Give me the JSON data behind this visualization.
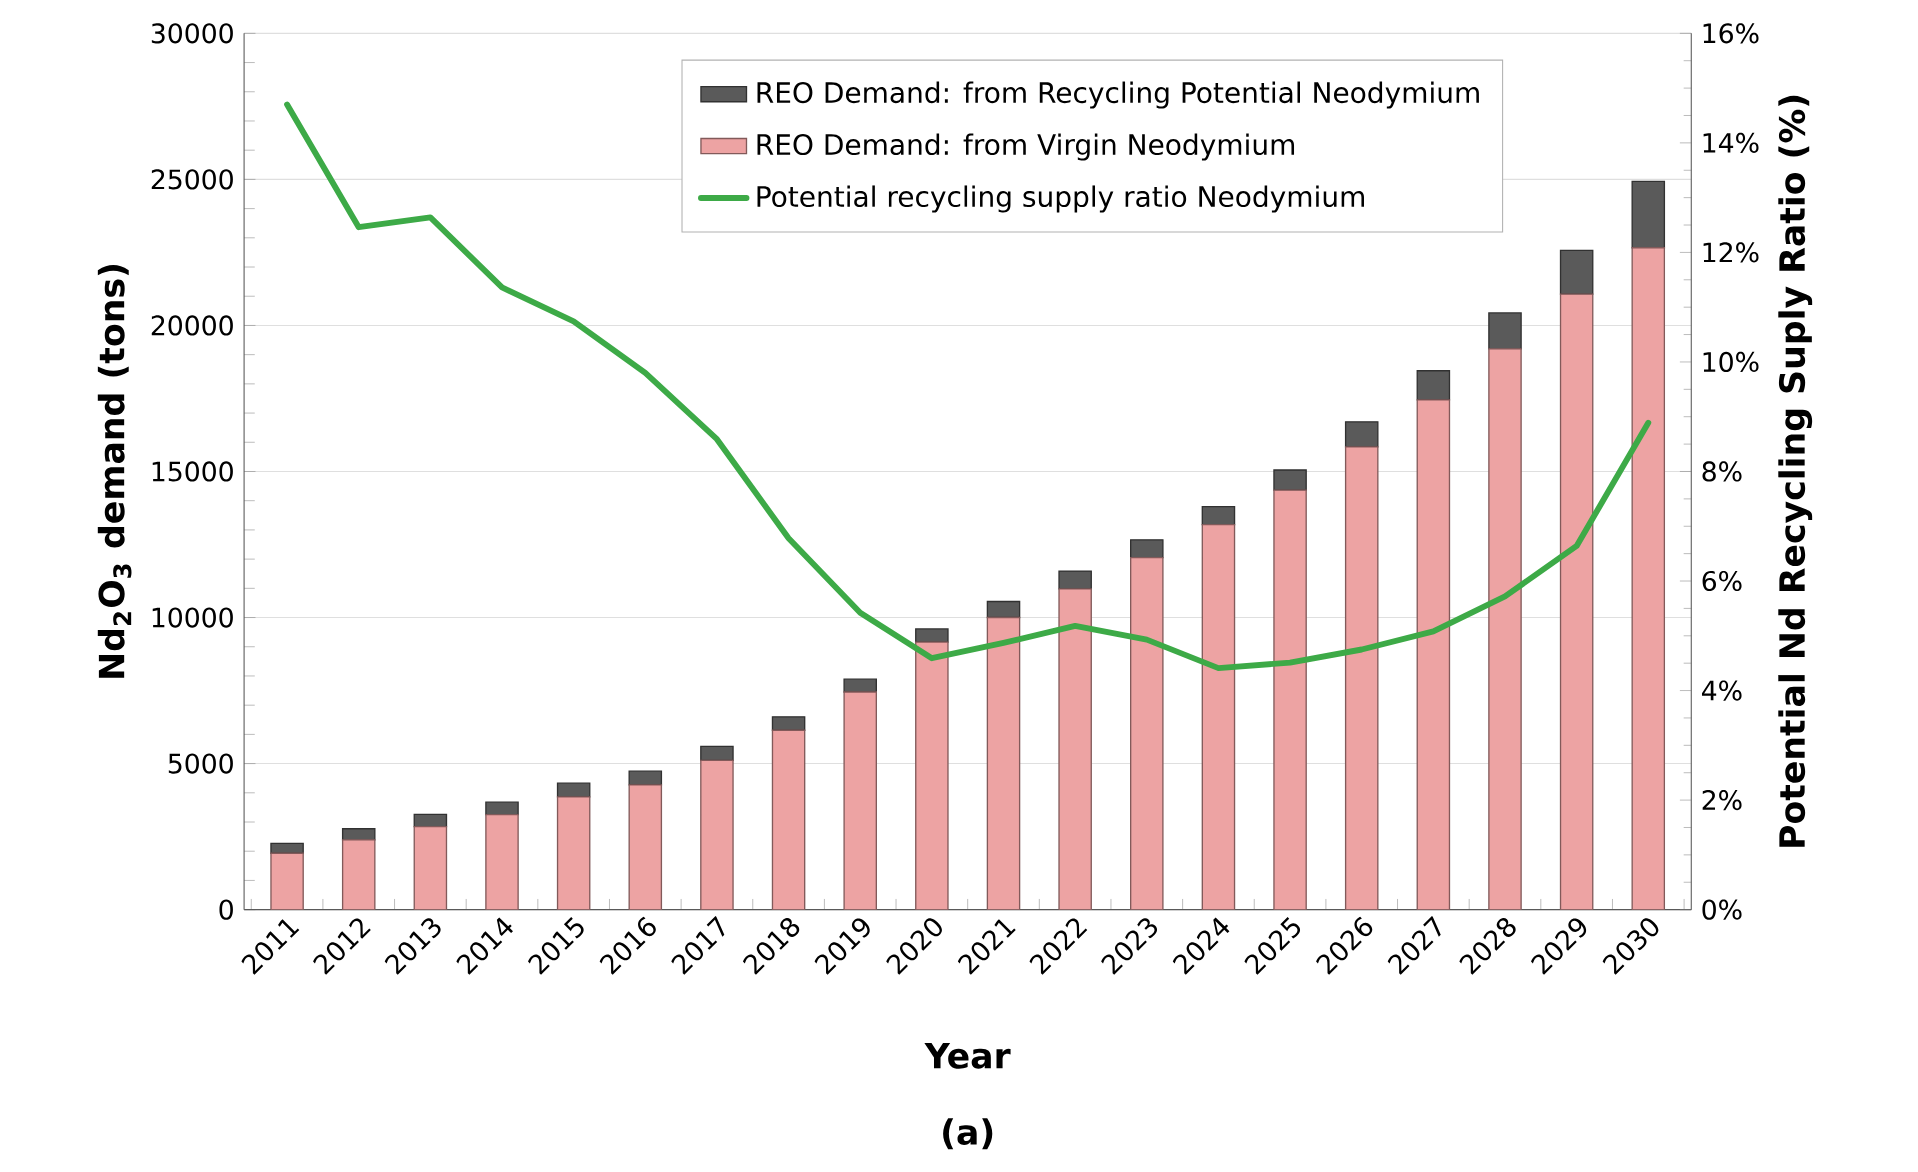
{
  "chart_data": {
    "type": "bar",
    "stacked": true,
    "categories": [
      "2011",
      "2012",
      "2013",
      "2014",
      "2015",
      "2016",
      "2017",
      "2018",
      "2019",
      "2020",
      "2021",
      "2022",
      "2023",
      "2024",
      "2025",
      "2026",
      "2027",
      "2028",
      "2029",
      "2030"
    ],
    "series": [
      {
        "name": "REO Demand: from Virgin Neodymium",
        "color": "#eda3a3",
        "values": [
          1930,
          2390,
          2840,
          3250,
          3860,
          4270,
          5110,
          6140,
          7450,
          9160,
          10000,
          10980,
          12050,
          13180,
          14360,
          15840,
          17450,
          19200,
          21070,
          22660
        ]
      },
      {
        "name": "REO Demand: from Recycling Potential Neodymium",
        "color": "#5a5a5a",
        "values": [
          340,
          380,
          420,
          430,
          470,
          470,
          480,
          460,
          440,
          450,
          550,
          610,
          610,
          620,
          690,
          860,
          1000,
          1230,
          1500,
          2270
        ]
      },
      {
        "name": "Potential recycling supply ratio Neodymium",
        "type": "line",
        "axis": "y2",
        "color": "#3daa47",
        "values": [
          14.7,
          12.46,
          12.64,
          11.36,
          10.74,
          9.8,
          8.59,
          6.78,
          5.42,
          4.59,
          4.87,
          5.18,
          4.93,
          4.41,
          4.51,
          4.75,
          5.08,
          5.72,
          6.64,
          8.89
        ]
      }
    ],
    "xlabel": "Year",
    "ylabel": "Nd$_{2}$O$_{3}$ demand (tons)",
    "y2label": "Potential Nd Recycling Suply Ratio (%)",
    "ylim": [
      0,
      30000
    ],
    "yticks": [
      0,
      5000,
      10000,
      15000,
      20000,
      25000,
      30000
    ],
    "y2lim": [
      0,
      16
    ],
    "y2ticks": [
      {
        "value": 0,
        "label": "0%"
      },
      {
        "value": 2,
        "label": "2%"
      },
      {
        "value": 4,
        "label": "4%"
      },
      {
        "value": 6,
        "label": "6%"
      },
      {
        "value": 8,
        "label": "8%"
      },
      {
        "value": 10,
        "label": "10%"
      },
      {
        "value": 12,
        "label": "12%"
      },
      {
        "value": 14,
        "label": "14%"
      },
      {
        "value": 16,
        "label": "16%"
      }
    ],
    "grid": "y",
    "legend": "top right",
    "annotations": [
      "(a)"
    ]
  }
}
